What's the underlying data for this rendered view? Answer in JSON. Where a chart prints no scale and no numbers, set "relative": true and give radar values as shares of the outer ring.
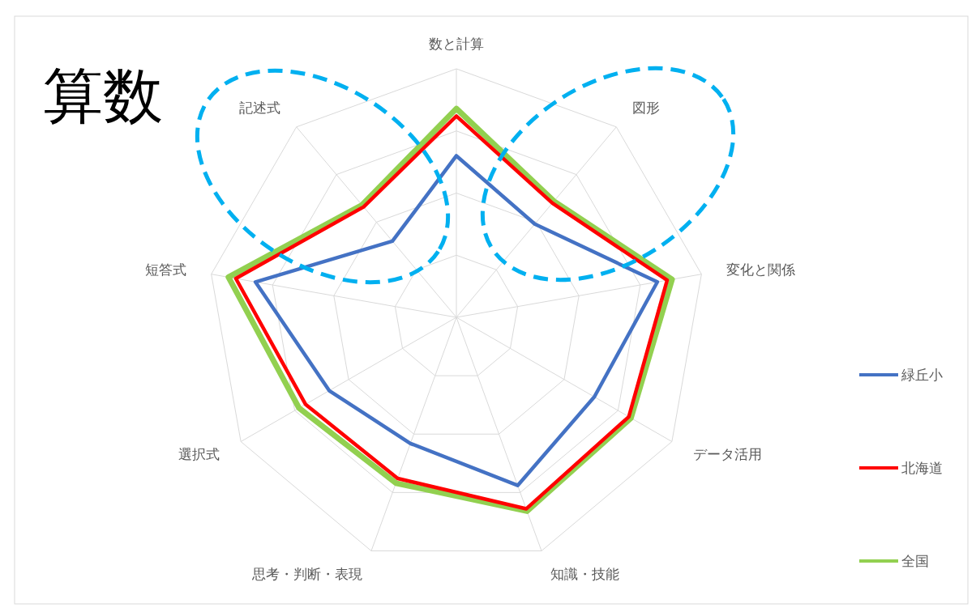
{
  "chart_data": {
    "type": "radar",
    "title": "算数",
    "relative": true,
    "grid": true,
    "legend": "right",
    "categories": [
      "数と計算",
      "図形",
      "変化と関係",
      "データ活用",
      "知識・技能",
      "思考・判断・表現",
      "選択式",
      "短答式",
      "記述式"
    ],
    "series": [
      {
        "name": "緑丘小",
        "color": "#4472c4",
        "values": [
          0.65,
          0.49,
          0.82,
          0.64,
          0.72,
          0.54,
          0.59,
          0.82,
          0.4
        ]
      },
      {
        "name": "北海道",
        "color": "#ff0000",
        "values": [
          0.81,
          0.6,
          0.86,
          0.8,
          0.82,
          0.69,
          0.7,
          0.9,
          0.58
        ]
      },
      {
        "name": "全国",
        "color": "#92d050",
        "values": [
          0.84,
          0.61,
          0.88,
          0.81,
          0.83,
          0.71,
          0.73,
          0.93,
          0.59
        ]
      }
    ]
  }
}
